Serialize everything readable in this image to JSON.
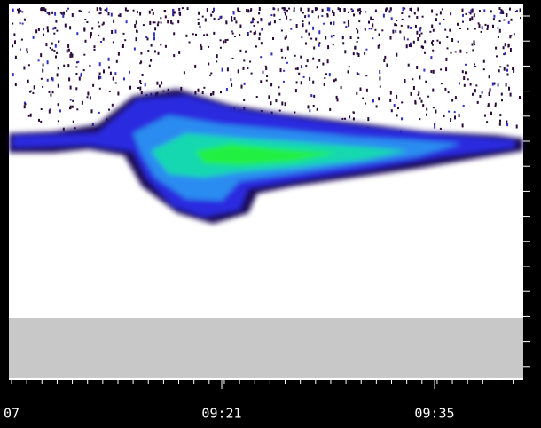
{
  "chart_data": {
    "type": "heatmap",
    "categories": [
      "07",
      "09:21",
      "09:35"
    ]
  }
}
